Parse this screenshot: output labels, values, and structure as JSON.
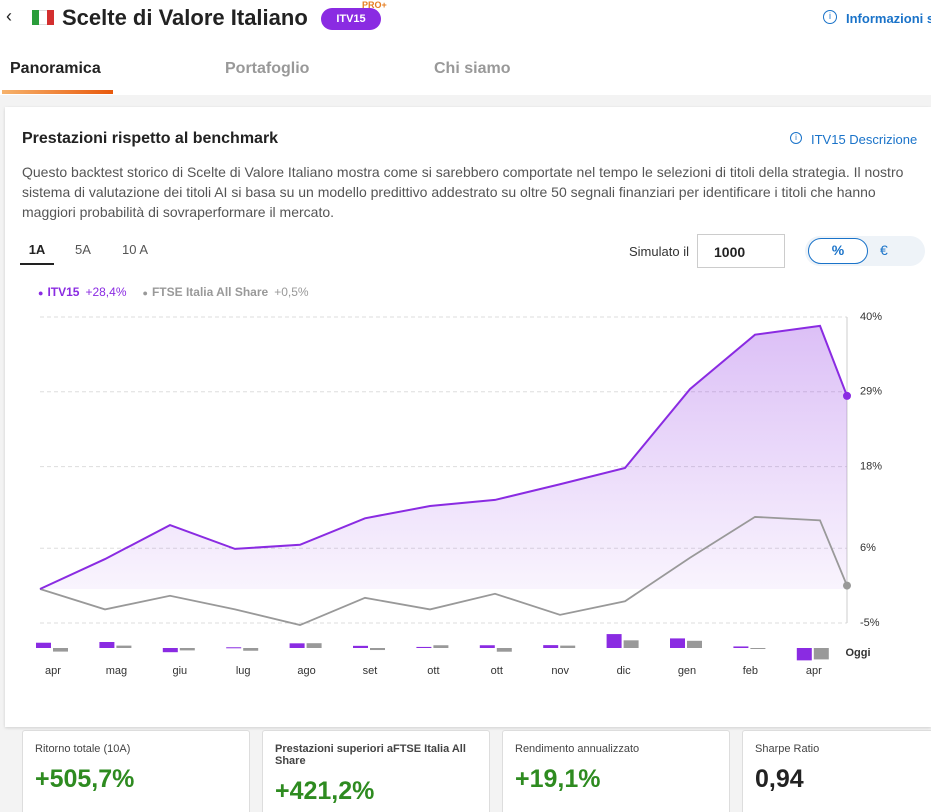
{
  "header": {
    "title": "Scelte di Valore Italiano",
    "badge": "ITV15",
    "badge_tag": "PRO+",
    "info_link": "Informazioni s"
  },
  "tabs": [
    "Panoramica",
    "Portafoglio",
    "Chi siamo"
  ],
  "card": {
    "title": "Prestazioni rispetto al benchmark",
    "link": "ITV15 Descrizione",
    "description": "Questo backtest storico di Scelte di Valore Italiano mostra come si sarebbero comportate nel tempo le selezioni di titoli della strategia. Il nostro sistema di valutazione dei titoli AI si basa su un modello predittivo addestrato su oltre 50 segnali finanziari per identificare i titoli che hanno maggiori probabilità di sovraperformare il mercato.",
    "periods": [
      "1A",
      "5A",
      "10 A"
    ],
    "simulated_label": "Simulato il",
    "simulated_value": "1000",
    "units": [
      "%",
      "€"
    ]
  },
  "chart_data": {
    "type": "line",
    "categories": [
      "apr",
      "mag",
      "giu",
      "lug",
      "ago",
      "set",
      "ott",
      "ott",
      "nov",
      "dic",
      "gen",
      "feb",
      "apr",
      "Oggi"
    ],
    "series": [
      {
        "name": "ITV15",
        "change": "+28,4%",
        "color": "#8a2be2",
        "values": [
          0,
          4.4,
          9.4,
          5.9,
          6.5,
          10.4,
          12.2,
          13.1,
          15.4,
          17.8,
          29.4,
          37.4,
          38.7,
          28.4
        ],
        "monthly_values": [
          4.4,
          5.0,
          -3.5,
          0.6,
          3.9,
          1.8,
          0.9,
          2.3,
          2.4,
          11.6,
          8.0,
          1.3,
          -10.3
        ]
      },
      {
        "name": "FTSE Italia All Share",
        "change": "+0,5%",
        "color": "#999999",
        "values": [
          0,
          -3,
          -1,
          -3,
          -5.3,
          -1.3,
          -3,
          -0.7,
          -3.8,
          -1.8,
          4.6,
          10.6,
          10.1,
          0.5
        ],
        "monthly_values": [
          -3,
          2,
          -2,
          -2.3,
          4,
          -1.7,
          2.3,
          -3.1,
          2,
          6.4,
          6,
          -0.5,
          -9.5
        ]
      }
    ],
    "ylim": [
      -5,
      40
    ],
    "yticks": [
      {
        "value": 40,
        "label": "40%"
      },
      {
        "value": 29,
        "label": "29%"
      },
      {
        "value": 18,
        "label": "18%"
      },
      {
        "value": 6,
        "label": "6%"
      },
      {
        "value": -5,
        "label": "-5%"
      }
    ],
    "grid": true
  },
  "stats": [
    {
      "label": "Ritorno totale (10A)",
      "value": "+505,7%"
    },
    {
      "label": "Prestazioni superiori aFTSE Italia All Share",
      "value": "+421,2%"
    },
    {
      "label": "Rendimento annualizzato",
      "value": "+19,1%"
    },
    {
      "label": "Sharpe Ratio",
      "value": "0,94"
    }
  ]
}
